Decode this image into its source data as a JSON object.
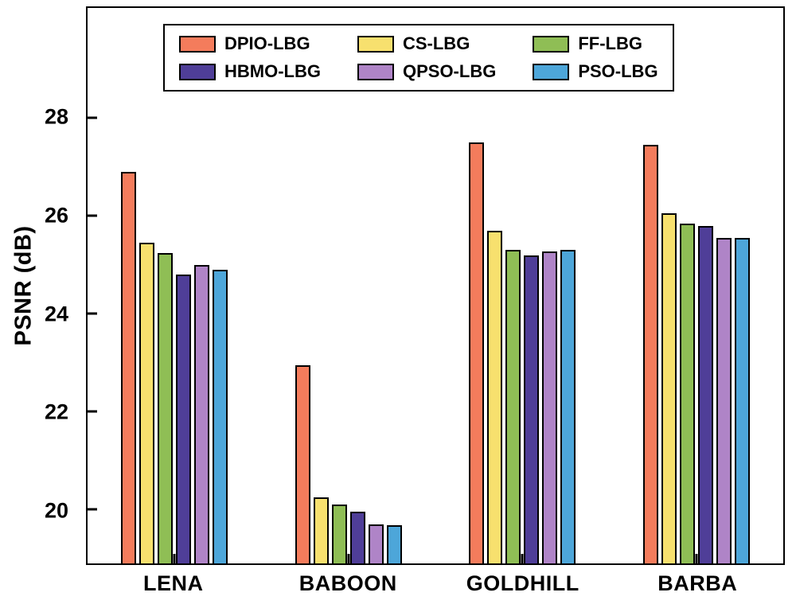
{
  "chart_data": {
    "type": "bar",
    "title": "",
    "xlabel": "",
    "ylabel": "PSNR (dB)",
    "categories": [
      "LENA",
      "BABOON",
      "GOLDHILL",
      "BARBA"
    ],
    "series": [
      {
        "name": "DPIO-LBG",
        "color": "#F47C5C",
        "values": [
          26.9,
          22.95,
          27.5,
          27.45
        ]
      },
      {
        "name": "CS-LBG",
        "color": "#F7E06E",
        "values": [
          25.45,
          20.25,
          25.7,
          26.05
        ]
      },
      {
        "name": "FF-LBG",
        "color": "#8FBE55",
        "values": [
          25.25,
          20.1,
          25.3,
          25.85
        ]
      },
      {
        "name": "HBMO-LBG",
        "color": "#4F3E98",
        "values": [
          24.8,
          19.95,
          25.2,
          25.8
        ]
      },
      {
        "name": "QPSO-LBG",
        "color": "#AF84C7",
        "values": [
          25.0,
          19.7,
          25.28,
          25.55
        ]
      },
      {
        "name": "PSO-LBG",
        "color": "#4DA6D9",
        "values": [
          24.9,
          19.68,
          25.3,
          25.55
        ]
      }
    ],
    "ylim": [
      18.9,
      30.25
    ],
    "yticks": [
      20,
      22,
      24,
      26,
      28
    ],
    "grid": false,
    "legend_position": "top-inside",
    "legend_rows": 2,
    "legend_columns": 3
  }
}
